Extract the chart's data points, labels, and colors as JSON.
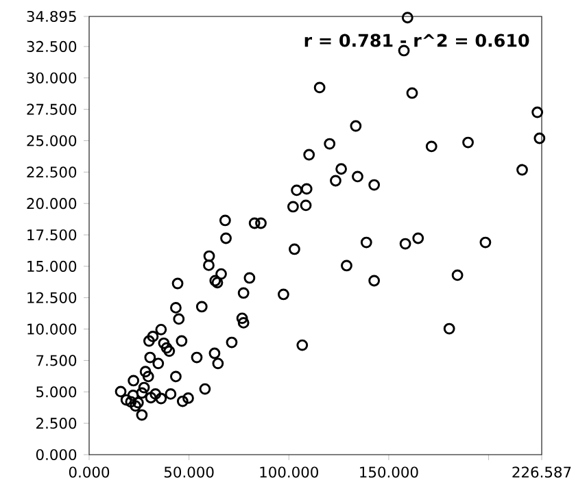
{
  "chart_data": {
    "type": "scatter",
    "annotations": [
      "r = 0.781 - r^2 = 0.610"
    ],
    "xlim": [
      0,
      226.587
    ],
    "ylim": [
      0,
      34.895
    ],
    "xticks": [
      {
        "value": 0,
        "label": "0.000"
      },
      {
        "value": 50,
        "label": "50.000"
      },
      {
        "value": 100,
        "label": "100.000"
      },
      {
        "value": 150,
        "label": "150.000"
      },
      {
        "value": 200,
        "label": null
      },
      {
        "value": 226.587,
        "label": "226.587"
      }
    ],
    "yticks": [
      {
        "value": 0,
        "label": "0.000"
      },
      {
        "value": 2.5,
        "label": "2.500"
      },
      {
        "value": 5,
        "label": "5.000"
      },
      {
        "value": 7.5,
        "label": "7.500"
      },
      {
        "value": 10,
        "label": "10.000"
      },
      {
        "value": 12.5,
        "label": "12.500"
      },
      {
        "value": 15,
        "label": "15.000"
      },
      {
        "value": 17.5,
        "label": "17.500"
      },
      {
        "value": 20,
        "label": "20.000"
      },
      {
        "value": 22.5,
        "label": "22.500"
      },
      {
        "value": 25,
        "label": "25.000"
      },
      {
        "value": 27.5,
        "label": "27.500"
      },
      {
        "value": 30,
        "label": "30.000"
      },
      {
        "value": 32.5,
        "label": "32.500"
      },
      {
        "value": 34.895,
        "label": "34.895"
      }
    ],
    "grid": false,
    "marker": "circle",
    "series": [
      {
        "color": "#000000",
        "x": [
          159.4,
          157.6,
          115.4,
          161.7,
          224.4,
          225.5,
          133.5,
          120.4,
          171.4,
          189.7,
          110.1,
          216.8,
          126.2,
          123.4,
          134.4,
          142.7,
          103.9,
          108.9,
          102.1,
          108.5,
          68.1,
          82.8,
          86.0,
          68.5,
          138.8,
          158.3,
          164.7,
          198.4,
          102.8,
          60.1,
          59.9,
          128.9,
          66.1,
          80.3,
          184.4,
          63.1,
          64.2,
          142.7,
          44.3,
          77.3,
          97.3,
          43.4,
          56.4,
          44.9,
          76.6,
          77.3,
          180.3,
          36.0,
          31.9,
          30.0,
          46.3,
          71.4,
          37.4,
          38.8,
          40.1,
          106.7,
          62.8,
          30.5,
          53.9,
          34.6,
          64.5,
          28.2,
          29.6,
          43.4,
          22.2,
          27.5,
          58.0,
          15.8,
          26.4,
          22.0,
          33.2,
          40.8,
          30.9,
          36.0,
          18.6,
          20.9,
          24.5,
          46.8,
          49.6,
          23.2,
          26.4
        ],
        "values": [
          34.8,
          32.17,
          29.23,
          28.79,
          27.26,
          25.19,
          26.17,
          24.75,
          24.54,
          24.86,
          23.88,
          22.68,
          22.75,
          21.81,
          22.14,
          21.48,
          21.05,
          21.16,
          19.74,
          19.85,
          18.65,
          18.43,
          18.43,
          17.23,
          16.9,
          16.79,
          17.23,
          16.9,
          16.36,
          15.81,
          15.08,
          15.05,
          14.39,
          14.07,
          14.29,
          13.85,
          13.7,
          13.85,
          13.63,
          12.87,
          12.76,
          11.7,
          11.78,
          10.8,
          10.86,
          10.5,
          10.03,
          9.96,
          9.41,
          9.05,
          9.05,
          8.94,
          8.87,
          8.5,
          8.24,
          8.72,
          8.07,
          7.74,
          7.74,
          7.26,
          7.26,
          6.61,
          6.22,
          6.22,
          5.89,
          5.34,
          5.23,
          5.02,
          4.91,
          4.72,
          4.83,
          4.83,
          4.54,
          4.47,
          4.36,
          4.21,
          4.14,
          4.25,
          4.5,
          3.88,
          3.16
        ]
      }
    ]
  }
}
